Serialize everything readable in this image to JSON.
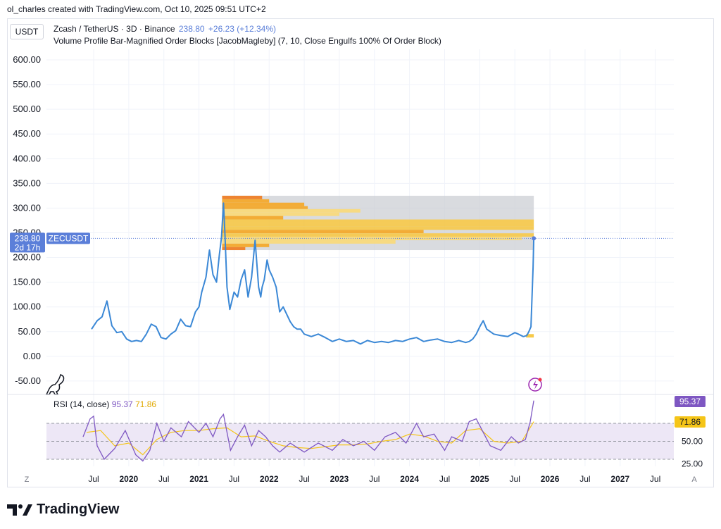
{
  "header": {
    "attribution": "ol_charles created with TradingView.com, Oct 10, 2025 09:51 UTC+2",
    "currency": "USDT",
    "symbol_title": "Zcash / TetherUS · 3D · Binance",
    "price": "238.80",
    "change": "+26.23 (+12.34%)",
    "indicator_title": "Volume Profile Bar-Magnified Order Blocks [JacobMagleby] (7, 10, Close Engulfs 100% Of Order Block)"
  },
  "colors": {
    "price_line": "#3b88d6",
    "rsi_line": "#7e57c2",
    "rsi_ma": "#f5c518",
    "rsi_band": "#ede7f6",
    "ob_box": "#c9ccd2",
    "orange_dark": "#f07a1e",
    "orange": "#f5a623",
    "yellow": "#f7c948",
    "yellow_light": "#fad978",
    "price_tag": "#5b7fd9",
    "grid": "#f0f3fa"
  },
  "price_tag": {
    "value": "238.80",
    "countdown": "2d 17h",
    "symbol": "ZECUSDT"
  },
  "rsi_legend": {
    "title": "RSI (14, close)",
    "value": "95.37",
    "ma_value": "71.86"
  },
  "rsi_axis_labels": [
    "50.00",
    "25.00"
  ],
  "footer": {
    "brand": "TradingView",
    "left_btn": "Z",
    "right_btn": "A"
  },
  "chart_data": [
    {
      "type": "line",
      "title": "Zcash / TetherUS · 3D · Binance",
      "series": [
        {
          "name": "ZECUSDT",
          "x": [
            2019.47,
            2019.55,
            2019.62,
            2019.69,
            2019.76,
            2019.83,
            2019.9,
            2019.97,
            2020.04,
            2020.11,
            2020.18,
            2020.25,
            2020.32,
            2020.39,
            2020.46,
            2020.53,
            2020.6,
            2020.67,
            2020.74,
            2020.81,
            2020.88,
            2020.95,
            2021.0,
            2021.04,
            2021.1,
            2021.15,
            2021.2,
            2021.25,
            2021.29,
            2021.32,
            2021.35,
            2021.37,
            2021.4,
            2021.44,
            2021.5,
            2021.55,
            2021.6,
            2021.65,
            2021.7,
            2021.75,
            2021.8,
            2021.85,
            2021.88,
            2021.9,
            2021.93,
            2021.97,
            2022.0,
            2022.05,
            2022.1,
            2022.15,
            2022.2,
            2022.25,
            2022.3,
            2022.35,
            2022.4,
            2022.45,
            2022.5,
            2022.6,
            2022.7,
            2022.8,
            2022.9,
            2023.0,
            2023.1,
            2023.2,
            2023.3,
            2023.4,
            2023.5,
            2023.6,
            2023.7,
            2023.8,
            2023.9,
            2024.0,
            2024.1,
            2024.2,
            2024.3,
            2024.4,
            2024.5,
            2024.6,
            2024.7,
            2024.8,
            2024.85,
            2024.9,
            2024.95,
            2025.0,
            2025.05,
            2025.1,
            2025.2,
            2025.3,
            2025.4,
            2025.5,
            2025.55,
            2025.62,
            2025.67,
            2025.7,
            2025.73,
            2025.76,
            2025.77
          ],
          "values": [
            55,
            72,
            80,
            112,
            62,
            48,
            50,
            35,
            30,
            32,
            30,
            45,
            65,
            60,
            38,
            35,
            45,
            52,
            75,
            62,
            60,
            90,
            100,
            130,
            160,
            215,
            165,
            150,
            205,
            240,
            310,
            250,
            140,
            95,
            130,
            120,
            155,
            175,
            120,
            160,
            235,
            140,
            120,
            140,
            155,
            195,
            175,
            160,
            140,
            90,
            100,
            85,
            70,
            60,
            55,
            55,
            45,
            40,
            45,
            38,
            30,
            35,
            30,
            32,
            25,
            32,
            28,
            30,
            28,
            32,
            30,
            35,
            38,
            30,
            33,
            35,
            30,
            28,
            32,
            28,
            30,
            35,
            45,
            60,
            72,
            55,
            45,
            42,
            40,
            48,
            45,
            40,
            42,
            50,
            60,
            180,
            238.8
          ]
        }
      ],
      "ylim": [
        -70,
        640
      ],
      "y_ticks": [
        600,
        550,
        500,
        450,
        400,
        350,
        300,
        250,
        200,
        150,
        100,
        50,
        0,
        -50
      ],
      "x_ticks": [
        {
          "x": 2019.5,
          "label": "Jul"
        },
        {
          "x": 2020.0,
          "label": "2020"
        },
        {
          "x": 2020.5,
          "label": "Jul"
        },
        {
          "x": 2021.0,
          "label": "2021"
        },
        {
          "x": 2021.5,
          "label": "Jul"
        },
        {
          "x": 2022.0,
          "label": "2022"
        },
        {
          "x": 2022.5,
          "label": "Jul"
        },
        {
          "x": 2023.0,
          "label": "2023"
        },
        {
          "x": 2023.5,
          "label": "Jul"
        },
        {
          "x": 2024.0,
          "label": "2024"
        },
        {
          "x": 2024.5,
          "label": "Jul"
        },
        {
          "x": 2025.0,
          "label": "2025"
        },
        {
          "x": 2025.5,
          "label": "Jul"
        },
        {
          "x": 2026.0,
          "label": "2026"
        },
        {
          "x": 2026.5,
          "label": "Jul"
        },
        {
          "x": 2027.0,
          "label": "2027"
        },
        {
          "x": 2027.5,
          "label": "Jul"
        }
      ],
      "order_block": {
        "x_start": 2021.33,
        "x_end": 2025.77,
        "y_low": 215,
        "y_high": 325,
        "bars": [
          {
            "y_low": 318,
            "y_high": 325,
            "x_end": 2021.9,
            "color": "orange_dark"
          },
          {
            "y_low": 311,
            "y_high": 318,
            "x_end": 2022.0,
            "color": "orange"
          },
          {
            "y_low": 304,
            "y_high": 311,
            "x_end": 2022.5,
            "color": "orange"
          },
          {
            "y_low": 298,
            "y_high": 304,
            "x_end": 2022.55,
            "color": "orange"
          },
          {
            "y_low": 291,
            "y_high": 298,
            "x_end": 2023.3,
            "color": "yellow_light"
          },
          {
            "y_low": 284,
            "y_high": 291,
            "x_end": 2023.0,
            "color": "yellow_light"
          },
          {
            "y_low": 277,
            "y_high": 284,
            "x_end": 2022.2,
            "color": "orange"
          },
          {
            "y_low": 270,
            "y_high": 277,
            "x_end": 2025.77,
            "color": "yellow"
          },
          {
            "y_low": 263,
            "y_high": 270,
            "x_end": 2025.77,
            "color": "yellow"
          },
          {
            "y_low": 256,
            "y_high": 263,
            "x_end": 2025.77,
            "color": "yellow"
          },
          {
            "y_low": 249,
            "y_high": 256,
            "x_end": 2024.2,
            "color": "orange"
          },
          {
            "y_low": 242,
            "y_high": 249,
            "x_end": 2025.77,
            "color": "yellow"
          },
          {
            "y_low": 235,
            "y_high": 242,
            "x_end": 2025.6,
            "color": "yellow_light"
          },
          {
            "y_low": 228,
            "y_high": 235,
            "x_end": 2023.8,
            "color": "yellow_light"
          },
          {
            "y_low": 221,
            "y_high": 228,
            "x_end": 2022.0,
            "color": "orange"
          },
          {
            "y_low": 215,
            "y_high": 221,
            "x_end": 2021.66,
            "color": "orange_dark"
          }
        ]
      },
      "small_ob": {
        "x_start": 2025.66,
        "x_end": 2025.77,
        "y_low": 38,
        "y_high": 45
      }
    },
    {
      "type": "line",
      "title": "RSI (14, close)",
      "series": [
        {
          "name": "RSI",
          "x": [
            2019.35,
            2019.45,
            2019.5,
            2019.55,
            2019.65,
            2019.8,
            2019.95,
            2020.1,
            2020.2,
            2020.3,
            2020.4,
            2020.5,
            2020.6,
            2020.75,
            2020.85,
            2021.0,
            2021.1,
            2021.2,
            2021.3,
            2021.35,
            2021.45,
            2021.55,
            2021.65,
            2021.75,
            2021.85,
            2021.95,
            2022.05,
            2022.15,
            2022.3,
            2022.5,
            2022.7,
            2022.9,
            2023.05,
            2023.2,
            2023.35,
            2023.5,
            2023.65,
            2023.8,
            2023.95,
            2024.1,
            2024.2,
            2024.35,
            2024.5,
            2024.6,
            2024.75,
            2024.85,
            2024.95,
            2025.05,
            2025.15,
            2025.3,
            2025.45,
            2025.55,
            2025.65,
            2025.72,
            2025.77
          ],
          "values": [
            55,
            75,
            78,
            45,
            30,
            42,
            62,
            35,
            28,
            40,
            70,
            50,
            65,
            55,
            72,
            60,
            70,
            55,
            75,
            80,
            40,
            55,
            68,
            45,
            62,
            55,
            45,
            38,
            48,
            38,
            48,
            40,
            52,
            45,
            50,
            40,
            55,
            60,
            48,
            70,
            55,
            58,
            40,
            55,
            50,
            72,
            75,
            60,
            45,
            40,
            55,
            48,
            52,
            72,
            95.37
          ]
        },
        {
          "name": "RSI-based MA",
          "x": [
            2019.4,
            2019.6,
            2019.8,
            2020.0,
            2020.2,
            2020.4,
            2020.6,
            2020.8,
            2021.0,
            2021.2,
            2021.4,
            2021.6,
            2021.8,
            2022.0,
            2022.2,
            2022.4,
            2022.6,
            2022.8,
            2023.0,
            2023.2,
            2023.4,
            2023.6,
            2023.8,
            2024.0,
            2024.2,
            2024.4,
            2024.6,
            2024.8,
            2025.0,
            2025.2,
            2025.4,
            2025.6,
            2025.77
          ],
          "values": [
            60,
            62,
            45,
            48,
            35,
            52,
            60,
            62,
            62,
            64,
            65,
            55,
            56,
            50,
            45,
            43,
            42,
            44,
            46,
            46,
            47,
            50,
            52,
            58,
            56,
            50,
            48,
            62,
            64,
            50,
            48,
            50,
            71.86
          ]
        }
      ],
      "ylim": [
        15,
        105
      ],
      "bands": {
        "upper": 70,
        "middle": 50,
        "lower": 30
      }
    }
  ]
}
